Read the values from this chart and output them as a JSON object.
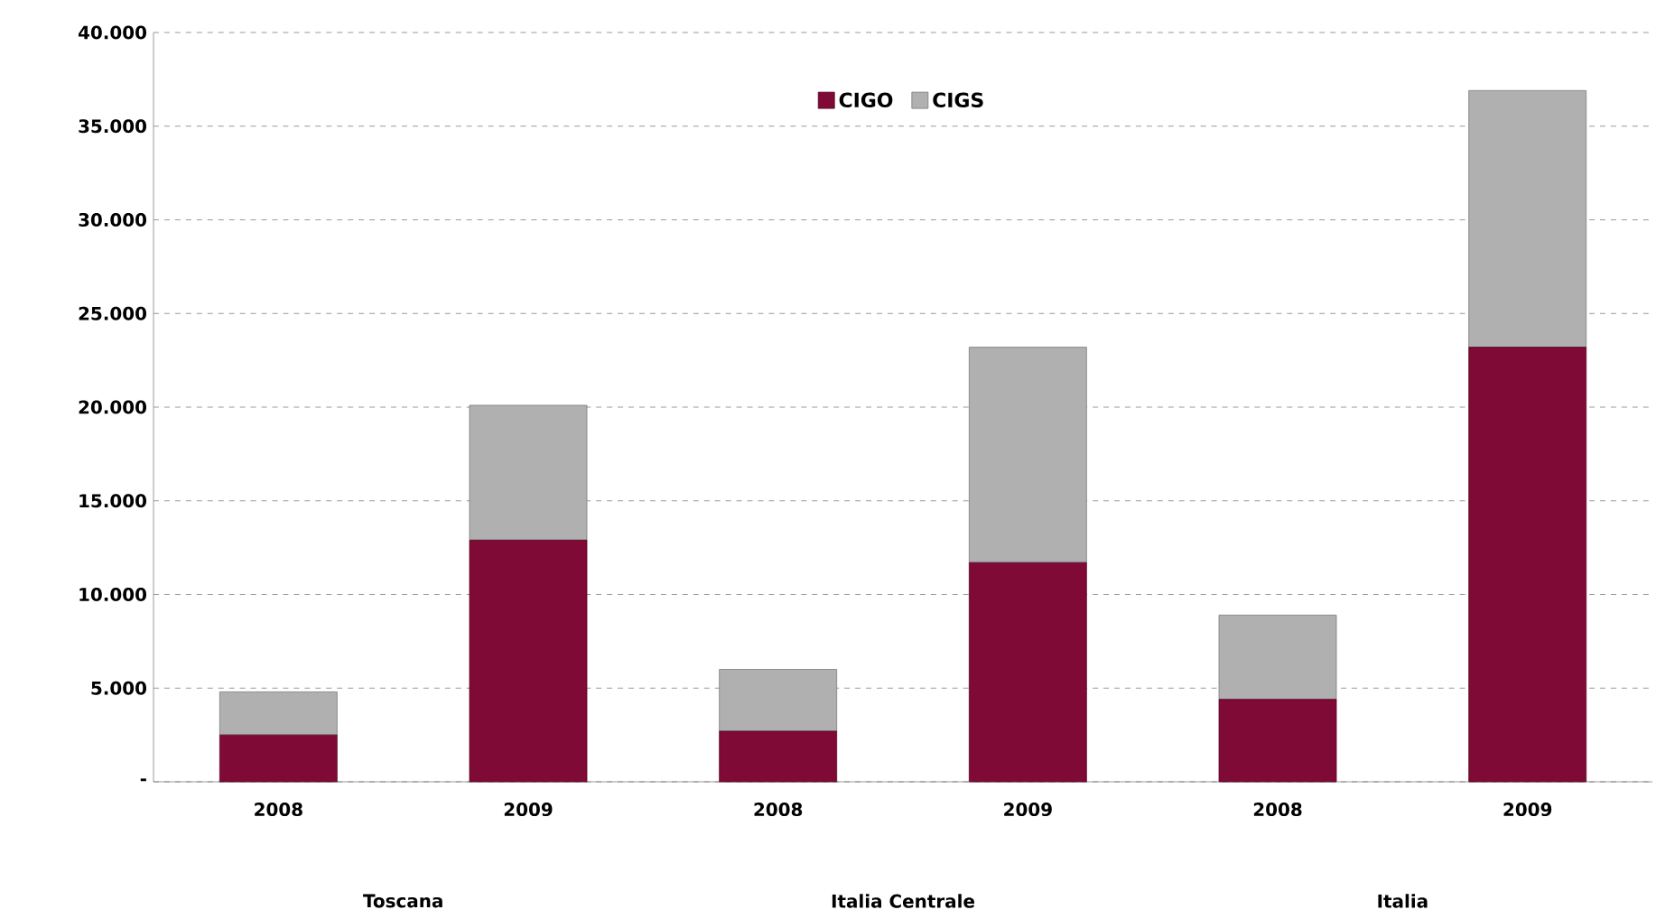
{
  "chart_data": {
    "type": "bar",
    "stacked": true,
    "categories": [
      "2008",
      "2009",
      "2008",
      "2009",
      "2008",
      "2009"
    ],
    "series": [
      {
        "name": "CIGO",
        "color": "#7f0a35",
        "values": [
          2500,
          12900,
          2700,
          11700,
          4400,
          23200
        ]
      },
      {
        "name": "CIGS",
        "color": "#b0b0b0",
        "values": [
          2300,
          7200,
          3300,
          11500,
          4500,
          13700
        ]
      }
    ],
    "ylim": [
      0,
      40000
    ],
    "yticks": [
      {
        "value": 0,
        "label": "-"
      },
      {
        "value": 5000,
        "label": "5.000"
      },
      {
        "value": 10000,
        "label": "10.000"
      },
      {
        "value": 15000,
        "label": "15.000"
      },
      {
        "value": 20000,
        "label": "20.000"
      },
      {
        "value": 25000,
        "label": "25.000"
      },
      {
        "value": 30000,
        "label": "30.000"
      },
      {
        "value": 35000,
        "label": "35.000"
      },
      {
        "value": 40000,
        "label": "40.000"
      }
    ],
    "grid": "y",
    "legend": "top",
    "annotations": [
      "Toscana",
      "Italia Centrale",
      "Italia"
    ]
  }
}
